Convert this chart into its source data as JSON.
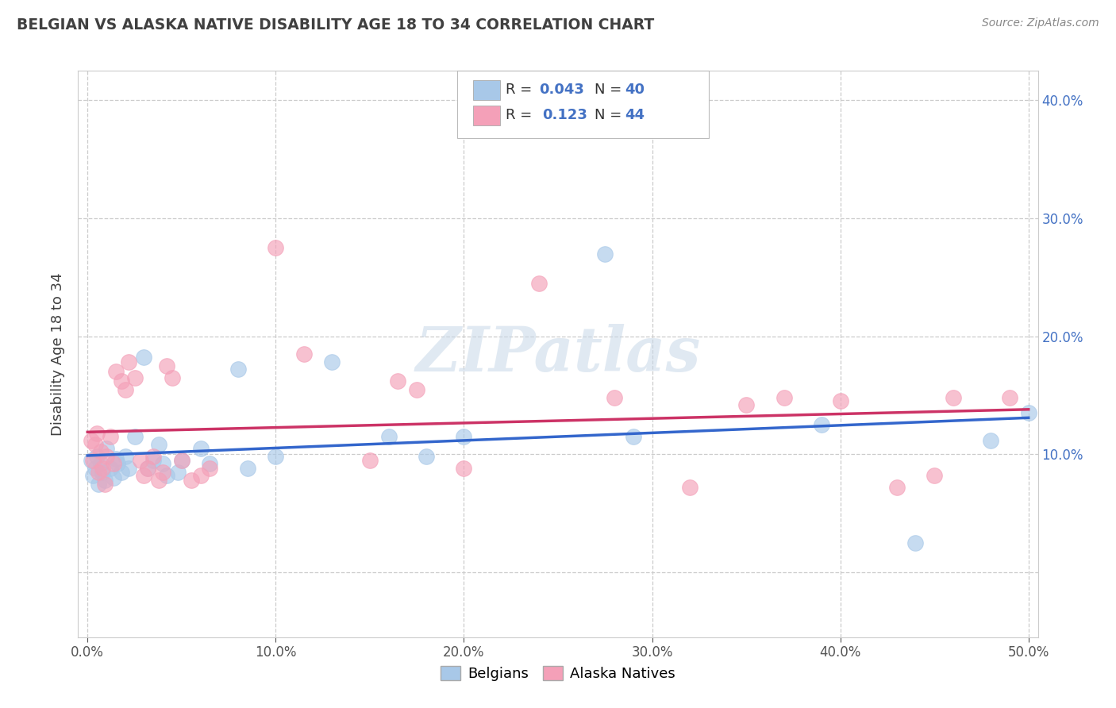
{
  "title": "BELGIAN VS ALASKA NATIVE DISABILITY AGE 18 TO 34 CORRELATION CHART",
  "source": "Source: ZipAtlas.com",
  "ylabel": "Disability Age 18 to 34",
  "xlim": [
    -0.005,
    0.505
  ],
  "ylim": [
    -0.055,
    0.425
  ],
  "xticks": [
    0.0,
    0.1,
    0.2,
    0.3,
    0.4,
    0.5
  ],
  "yticks": [
    0.0,
    0.1,
    0.2,
    0.3,
    0.4
  ],
  "xticklabels": [
    "0.0%",
    "10.0%",
    "20.0%",
    "30.0%",
    "40.0%",
    "50.0%"
  ],
  "yticklabels_right": [
    "",
    "10.0%",
    "20.0%",
    "30.0%",
    "40.0%"
  ],
  "legend_label_blue": "Belgians",
  "legend_label_pink": "Alaska Natives",
  "watermark": "ZIPatlas",
  "blue_color": "#a8c8e8",
  "pink_color": "#f4a0b8",
  "blue_line_color": "#3366cc",
  "pink_line_color": "#cc3366",
  "background_color": "#ffffff",
  "grid_color": "#cccccc",
  "title_color": "#404040",
  "axis_label_color": "#404040",
  "tick_color_blue": "#4472c4",
  "blue_scatter": [
    [
      0.002,
      0.095
    ],
    [
      0.003,
      0.082
    ],
    [
      0.004,
      0.088
    ],
    [
      0.005,
      0.098
    ],
    [
      0.006,
      0.075
    ],
    [
      0.007,
      0.092
    ],
    [
      0.008,
      0.085
    ],
    [
      0.009,
      0.078
    ],
    [
      0.01,
      0.105
    ],
    [
      0.012,
      0.088
    ],
    [
      0.014,
      0.08
    ],
    [
      0.015,
      0.096
    ],
    [
      0.016,
      0.092
    ],
    [
      0.018,
      0.085
    ],
    [
      0.02,
      0.098
    ],
    [
      0.022,
      0.088
    ],
    [
      0.025,
      0.115
    ],
    [
      0.03,
      0.182
    ],
    [
      0.032,
      0.088
    ],
    [
      0.035,
      0.095
    ],
    [
      0.038,
      0.108
    ],
    [
      0.04,
      0.092
    ],
    [
      0.042,
      0.082
    ],
    [
      0.048,
      0.085
    ],
    [
      0.05,
      0.095
    ],
    [
      0.06,
      0.105
    ],
    [
      0.065,
      0.092
    ],
    [
      0.08,
      0.172
    ],
    [
      0.085,
      0.088
    ],
    [
      0.1,
      0.098
    ],
    [
      0.13,
      0.178
    ],
    [
      0.16,
      0.115
    ],
    [
      0.18,
      0.098
    ],
    [
      0.2,
      0.115
    ],
    [
      0.275,
      0.27
    ],
    [
      0.29,
      0.115
    ],
    [
      0.39,
      0.125
    ],
    [
      0.44,
      0.025
    ],
    [
      0.48,
      0.112
    ],
    [
      0.5,
      0.135
    ]
  ],
  "pink_scatter": [
    [
      0.002,
      0.112
    ],
    [
      0.003,
      0.095
    ],
    [
      0.004,
      0.108
    ],
    [
      0.005,
      0.118
    ],
    [
      0.006,
      0.085
    ],
    [
      0.007,
      0.102
    ],
    [
      0.008,
      0.088
    ],
    [
      0.009,
      0.075
    ],
    [
      0.01,
      0.098
    ],
    [
      0.012,
      0.115
    ],
    [
      0.014,
      0.092
    ],
    [
      0.015,
      0.17
    ],
    [
      0.018,
      0.162
    ],
    [
      0.02,
      0.155
    ],
    [
      0.022,
      0.178
    ],
    [
      0.025,
      0.165
    ],
    [
      0.028,
      0.095
    ],
    [
      0.03,
      0.082
    ],
    [
      0.032,
      0.088
    ],
    [
      0.035,
      0.098
    ],
    [
      0.038,
      0.078
    ],
    [
      0.04,
      0.085
    ],
    [
      0.042,
      0.175
    ],
    [
      0.045,
      0.165
    ],
    [
      0.05,
      0.095
    ],
    [
      0.055,
      0.078
    ],
    [
      0.06,
      0.082
    ],
    [
      0.065,
      0.088
    ],
    [
      0.1,
      0.275
    ],
    [
      0.115,
      0.185
    ],
    [
      0.15,
      0.095
    ],
    [
      0.165,
      0.162
    ],
    [
      0.175,
      0.155
    ],
    [
      0.2,
      0.088
    ],
    [
      0.24,
      0.245
    ],
    [
      0.28,
      0.148
    ],
    [
      0.32,
      0.072
    ],
    [
      0.35,
      0.142
    ],
    [
      0.37,
      0.148
    ],
    [
      0.4,
      0.145
    ],
    [
      0.43,
      0.072
    ],
    [
      0.45,
      0.082
    ],
    [
      0.46,
      0.148
    ],
    [
      0.49,
      0.148
    ]
  ]
}
